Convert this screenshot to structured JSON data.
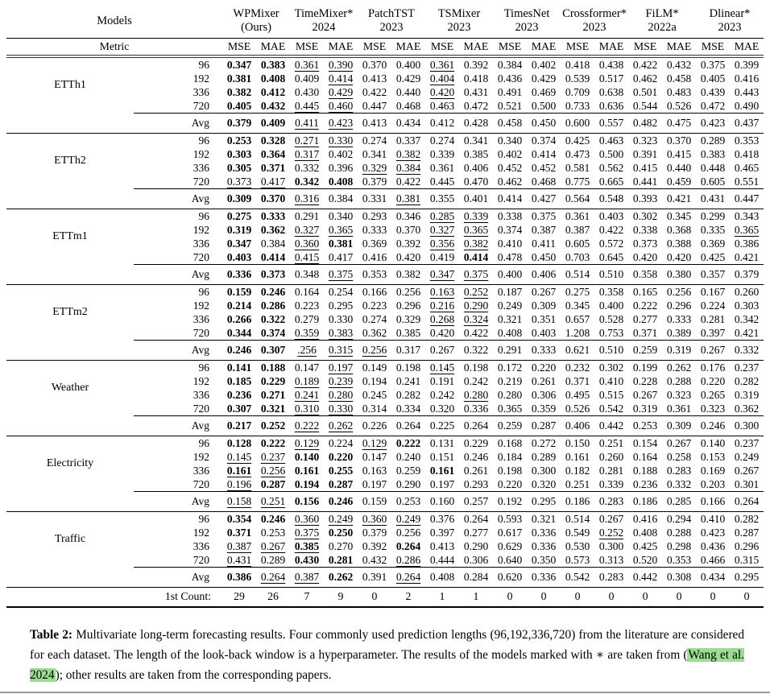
{
  "colors": {
    "citation_highlight": "#9ade90",
    "rule": "#000000",
    "text": "#000000"
  },
  "header": {
    "models_label": "Models",
    "metric_label": "Metric",
    "metrics": [
      "MSE",
      "MAE"
    ],
    "models": [
      {
        "name": "WPMixer",
        "year": "(Ours)"
      },
      {
        "name": "TimeMixer*",
        "year": "2024"
      },
      {
        "name": "PatchTST",
        "year": "2023"
      },
      {
        "name": "TSMixer",
        "year": "2023"
      },
      {
        "name": "TimesNet",
        "year": "2023"
      },
      {
        "name": "Crossformer*",
        "year": "2023"
      },
      {
        "name": "FiLM*",
        "year": "2022a"
      },
      {
        "name": "Dlinear*",
        "year": "2023"
      }
    ]
  },
  "datasets": [
    {
      "name": "ETTh1",
      "rows": [
        {
          "label": "96",
          "cells": [
            "B|0.347",
            "B|0.383",
            "U|0.361",
            "U|0.390",
            "0.370",
            "0.400",
            "U|0.361",
            "0.392",
            "0.384",
            "0.402",
            "0.418",
            "0.438",
            "0.422",
            "0.432",
            "0.375",
            "0.399"
          ]
        },
        {
          "label": "192",
          "cells": [
            "B|0.381",
            "B|0.408",
            "0.409",
            "U|0.414",
            "0.413",
            "0.429",
            "U|0.404",
            "0.418",
            "0.436",
            "0.429",
            "0.539",
            "0.517",
            "0.462",
            "0.458",
            "0.405",
            "0.416"
          ]
        },
        {
          "label": "336",
          "cells": [
            "B|0.382",
            "B|0.412",
            "0.430",
            "U|0.429",
            "0.422",
            "0.440",
            "U|0.420",
            "0.431",
            "0.491",
            "0.469",
            "0.709",
            "0.638",
            "0.501",
            "0.483",
            "0.439",
            "0.443"
          ]
        },
        {
          "label": "720",
          "cells": [
            "B|0.405",
            "B|0.432",
            "U|0.445",
            "U|0.460",
            "0.447",
            "0.468",
            "0.463",
            "0.472",
            "0.521",
            "0.500",
            "0.733",
            "0.636",
            "0.544",
            "0.526",
            "0.472",
            "0.490"
          ]
        }
      ],
      "avg_row": {
        "label": "Avg",
        "cells": [
          "B|0.379",
          "B|0.409",
          "U|0.411",
          "U|0.423",
          "0.413",
          "0.434",
          "0.412",
          "0.428",
          "0.458",
          "0.450",
          "0.600",
          "0.557",
          "0.482",
          "0.475",
          "0.423",
          "0.437"
        ]
      }
    },
    {
      "name": "ETTh2",
      "rows": [
        {
          "label": "96",
          "cells": [
            "B|0.253",
            "B|0.328",
            "U|0.271",
            "U|0.330",
            "0.274",
            "0.337",
            "0.274",
            "0.341",
            "0.340",
            "0.374",
            "0.425",
            "0.463",
            "0.323",
            "0.370",
            "0.289",
            "0.353"
          ]
        },
        {
          "label": "192",
          "cells": [
            "B|0.303",
            "B|0.364",
            "U|0.317",
            "0.402",
            "0.341",
            "U|0.382",
            "0.339",
            "0.385",
            "0.402",
            "0.414",
            "0.473",
            "0.500",
            "0.391",
            "0.415",
            "0.383",
            "0.418"
          ]
        },
        {
          "label": "336",
          "cells": [
            "B|0.305",
            "B|0.371",
            "0.332",
            "0.396",
            "U|0.329",
            "U|0.384",
            "0.361",
            "0.406",
            "0.452",
            "0.452",
            "0.581",
            "0.562",
            "0.415",
            "0.440",
            "0.448",
            "0.465"
          ]
        },
        {
          "label": "720",
          "cells": [
            "U|0.373",
            "U|0.417",
            "B|0.342",
            "B|0.408",
            "0.379",
            "0.422",
            "0.445",
            "0.470",
            "0.462",
            "0.468",
            "0.775",
            "0.665",
            "0.441",
            "0.459",
            "0.605",
            "0.551"
          ]
        }
      ],
      "avg_row": {
        "label": "Avg",
        "cells": [
          "B|0.309",
          "B|0.370",
          "U|0.316",
          "0.384",
          "0.331",
          "U|0.381",
          "0.355",
          "0.401",
          "0.414",
          "0.427",
          "0.564",
          "0.548",
          "0.393",
          "0.421",
          "0.431",
          "0.447"
        ]
      }
    },
    {
      "name": "ETTm1",
      "rows": [
        {
          "label": "96",
          "cells": [
            "B|0.275",
            "B|0.333",
            "0.291",
            "0.340",
            "0.293",
            "0.346",
            "U|0.285",
            "U|0.339",
            "0.338",
            "0.375",
            "0.361",
            "0.403",
            "0.302",
            "0.345",
            "0.299",
            "0.343"
          ]
        },
        {
          "label": "192",
          "cells": [
            "B|0.319",
            "B|0.362",
            "U|0.327",
            "U|0.365",
            "0.333",
            "0.370",
            "U|0.327",
            "U|0.365",
            "0.374",
            "0.387",
            "0.387",
            "0.422",
            "0.338",
            "0.368",
            "0.335",
            "U|0.365"
          ]
        },
        {
          "label": "336",
          "cells": [
            "B|0.347",
            "0.384",
            "U|0.360",
            "B|0.381",
            "0.369",
            "0.392",
            "U|0.356",
            "U|0.382",
            "0.410",
            "0.411",
            "0.605",
            "0.572",
            "0.373",
            "0.388",
            "0.369",
            "0.386"
          ]
        },
        {
          "label": "720",
          "cells": [
            "B|0.403",
            "B|0.414",
            "U|0.415",
            "0.417",
            "0.416",
            "0.420",
            "0.419",
            "B|0.414",
            "0.478",
            "0.450",
            "0.703",
            "0.645",
            "0.420",
            "0.420",
            "0.425",
            "0.421"
          ]
        }
      ],
      "avg_row": {
        "label": "Avg",
        "cells": [
          "B|0.336",
          "B|0.373",
          "0.348",
          "U|0.375",
          "0.353",
          "0.382",
          "U|0.347",
          "U|0.375",
          "0.400",
          "0.406",
          "0.514",
          "0.510",
          "0.358",
          "0.380",
          "0.357",
          "0.379"
        ]
      }
    },
    {
      "name": "ETTm2",
      "rows": [
        {
          "label": "96",
          "cells": [
            "B|0.159",
            "B|0.246",
            "0.164",
            "0.254",
            "0.166",
            "0.256",
            "U|0.163",
            "U|0.252",
            "0.187",
            "0.267",
            "0.275",
            "0.358",
            "0.165",
            "0.256",
            "0.167",
            "0.260"
          ]
        },
        {
          "label": "192",
          "cells": [
            "B|0.214",
            "B|0.286",
            "0.223",
            "0.295",
            "0.223",
            "0.296",
            "U|0.216",
            "U|0.290",
            "0.249",
            "0.309",
            "0.345",
            "0.400",
            "0.222",
            "0.296",
            "0.224",
            "0.303"
          ]
        },
        {
          "label": "336",
          "cells": [
            "B|0.266",
            "B|0.322",
            "0.279",
            "0.330",
            "0.274",
            "0.329",
            "U|0.268",
            "U|0.324",
            "0.321",
            "0.351",
            "0.657",
            "0.528",
            "0.277",
            "0.333",
            "0.281",
            "0.342"
          ]
        },
        {
          "label": "720",
          "cells": [
            "B|0.344",
            "B|0.374",
            "U|0.359",
            "U|0.383",
            "0.362",
            "0.385",
            "0.420",
            "0.422",
            "0.408",
            "0.403",
            "1.208",
            "0.753",
            "0.371",
            "0.389",
            "0.397",
            "0.421"
          ]
        }
      ],
      "avg_row": {
        "label": "Avg",
        "cells": [
          "B|0.246",
          "B|0.307",
          "U|.256",
          "U|0.315",
          "U|0.256",
          "0.317",
          "0.267",
          "0.322",
          "0.291",
          "0.333",
          "0.621",
          "0.510",
          "0.259",
          "0.319",
          "0.267",
          "0.332"
        ]
      }
    },
    {
      "name": "Weather",
      "rows": [
        {
          "label": "96",
          "cells": [
            "B|0.141",
            "B|0.188",
            "0.147",
            "U|0.197",
            "0.149",
            "0.198",
            "U|0.145",
            "0.198",
            "0.172",
            "0.220",
            "0.232",
            "0.302",
            "0.199",
            "0.262",
            "0.176",
            "0.237"
          ]
        },
        {
          "label": "192",
          "cells": [
            "B|0.185",
            "B|0.229",
            "U|0.189",
            "U|0.239",
            "0.194",
            "0.241",
            "0.191",
            "0.242",
            "0.219",
            "0.261",
            "0.371",
            "0.410",
            "0.228",
            "0.288",
            "0.220",
            "0.282"
          ]
        },
        {
          "label": "336",
          "cells": [
            "B|0.236",
            "B|0.271",
            "U|0.241",
            "U|0.280",
            "0.245",
            "0.282",
            "0.242",
            "U|0.280",
            "0.280",
            "0.306",
            "0.495",
            "0.515",
            "0.267",
            "0.323",
            "0.265",
            "0.319"
          ]
        },
        {
          "label": "720",
          "cells": [
            "B|0.307",
            "B|0.321",
            "U|0.310",
            "U|0.330",
            "0.314",
            "0.334",
            "0.320",
            "0.336",
            "0.365",
            "0.359",
            "0.526",
            "0.542",
            "0.319",
            "0.361",
            "0.323",
            "0.362"
          ]
        }
      ],
      "avg_row": {
        "label": "Avg",
        "cells": [
          "B|0.217",
          "B|0.252",
          "U|0.222",
          "U|0.262",
          "0.226",
          "0.264",
          "0.225",
          "0.264",
          "0.259",
          "0.287",
          "0.406",
          "0.442",
          "0.253",
          "0.309",
          "0.246",
          "0.300"
        ]
      }
    },
    {
      "name": "Electricity",
      "rows": [
        {
          "label": "96",
          "cells": [
            "B|0.128",
            "B|0.222",
            "U|0.129",
            "0.224",
            "U|0.129",
            "B|0.222",
            "0.131",
            "0.229",
            "0.168",
            "0.272",
            "0.150",
            "0.251",
            "0.154",
            "0.267",
            "0.140",
            "0.237"
          ]
        },
        {
          "label": "192",
          "cells": [
            "U|0.145",
            "U|0.237",
            "B|0.140",
            "B|0.220",
            "0.147",
            "0.240",
            "0.151",
            "0.246",
            "0.184",
            "0.289",
            "0.161",
            "0.260",
            "0.164",
            "0.258",
            "0.153",
            "0.249"
          ]
        },
        {
          "label": "336",
          "cells": [
            "BU|0.161",
            "U|0.256",
            "B|0.161",
            "B|0.255",
            "0.163",
            "0.259",
            "B|0.161",
            "0.261",
            "0.198",
            "0.300",
            "0.182",
            "0.281",
            "0.188",
            "0.283",
            "0.169",
            "0.267"
          ]
        },
        {
          "label": "720",
          "cells": [
            "U|0.196",
            "B|0.287",
            "B|0.194",
            "B|0.287",
            "0.197",
            "0.290",
            "0.197",
            "0.293",
            "0.220",
            "0.320",
            "0.251",
            "0.339",
            "0.236",
            "0.332",
            "0.203",
            "0.301"
          ]
        }
      ],
      "avg_row": {
        "label": "Avg",
        "cells": [
          "U|0.158",
          "U|0.251",
          "B|0.156",
          "B|0.246",
          "0.159",
          "0.253",
          "0.160",
          "0.257",
          "0.192",
          "0.295",
          "0.186",
          "0.283",
          "0.186",
          "0.285",
          "0.166",
          "0.264"
        ]
      }
    },
    {
      "name": "Traffic",
      "rows": [
        {
          "label": "96",
          "cells": [
            "B|0.354",
            "B|0.246",
            "U|0.360",
            "U|0.249",
            "U|0.360",
            "U|0.249",
            "0.376",
            "0.264",
            "0.593",
            "0.321",
            "0.514",
            "0.267",
            "0.416",
            "0.294",
            "0.410",
            "0.282"
          ]
        },
        {
          "label": "192",
          "cells": [
            "B|0.371",
            "0.253",
            "U|0.375",
            "B|0.250",
            "0.379",
            "0.256",
            "0.397",
            "0.277",
            "0.617",
            "0.336",
            "0.549",
            "U|0.252",
            "0.408",
            "0.288",
            "0.423",
            "0.287"
          ]
        },
        {
          "label": "336",
          "cells": [
            "U|0.387",
            "U|0.267",
            "BU|0.385",
            "0.270",
            "0.392",
            "B|0.264",
            "0.413",
            "0.290",
            "0.629",
            "0.336",
            "0.530",
            "0.300",
            "0.425",
            "0.298",
            "0.436",
            "0.296"
          ]
        },
        {
          "label": "720",
          "cells": [
            "U|0.431",
            "0.289",
            "B|0.430",
            "B|0.281",
            "0.432",
            "U|0.286",
            "0.444",
            "0.306",
            "0.640",
            "0.350",
            "0.573",
            "0.313",
            "0.520",
            "0.353",
            "0.466",
            "0.315"
          ]
        }
      ],
      "avg_row": {
        "label": "Avg",
        "cells": [
          "B|0.386",
          "U|0.264",
          "U|0.387",
          "B|0.262",
          "0.391",
          "U|0.264",
          "0.408",
          "0.284",
          "0.620",
          "0.336",
          "0.542",
          "0.283",
          "0.442",
          "0.308",
          "0.434",
          "0.295"
        ]
      }
    }
  ],
  "first_count": {
    "label": "1st Count:",
    "values": [
      "29",
      "26",
      "7",
      "9",
      "0",
      "2",
      "1",
      "1",
      "0",
      "0",
      "0",
      "0",
      "0",
      "0",
      "0",
      "0"
    ]
  },
  "caption": {
    "label": "Table 2:",
    "before_citation": " Multivariate long-term forecasting results. Four commonly used prediction lengths (96,192,336,720) from the literature are considered for each dataset. The length of the look-back window is a hyperparameter. The results of the models marked with ∗ are taken from (",
    "citation": "Wang et al. 2024",
    "after_citation": "); other results are taken from the corresponding papers."
  }
}
